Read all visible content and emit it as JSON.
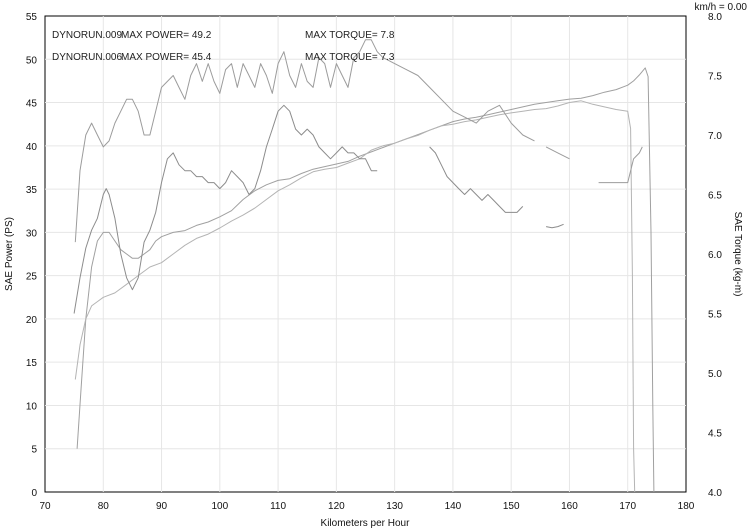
{
  "chart_data": {
    "type": "line",
    "xlabel": "Kilometers per Hour",
    "ylabel_left": "SAE Power  (PS)",
    "ylabel_right": "SAE Torque  (kg-m)",
    "readout": "km/h = 0.00",
    "xlim": [
      70,
      180
    ],
    "ylim_left": [
      0,
      55
    ],
    "ylim_right": [
      4.0,
      8.0
    ],
    "x_ticks": [
      70,
      80,
      90,
      100,
      110,
      120,
      130,
      140,
      150,
      160,
      170,
      180
    ],
    "y_left_ticks": [
      0,
      5,
      10,
      15,
      20,
      25,
      30,
      35,
      40,
      45,
      50,
      55
    ],
    "y_right_ticks": [
      "4.0",
      "4.5",
      "5.0",
      "5.5",
      "6.0",
      "6.5",
      "7.0",
      "7.5",
      "8.0"
    ],
    "grid": true,
    "legend": [
      {
        "run": "DYNORUN.009",
        "power": "MAX POWER= 49.2",
        "torque": "MAX TORQUE= 7.8",
        "color": "#8a8a8a"
      },
      {
        "run": "DYNORUN.006",
        "power": "MAX POWER= 45.4",
        "torque": "MAX TORQUE= 7.3",
        "color": "#222222"
      }
    ],
    "series": [
      {
        "name": "DYNORUN.009",
        "kind": "power",
        "axis": "left",
        "color": "#a0a0a0",
        "segments": [
          [
            [
              75.5,
              5
            ],
            [
              76.2,
              12
            ],
            [
              77,
              20
            ],
            [
              78,
              26
            ],
            [
              79,
              29
            ],
            [
              80,
              30
            ],
            [
              81,
              30
            ],
            [
              82,
              29
            ],
            [
              83,
              28
            ],
            [
              84,
              27.5
            ],
            [
              85,
              27
            ],
            [
              86,
              27
            ],
            [
              87,
              27.5
            ],
            [
              88,
              28
            ],
            [
              89,
              29
            ],
            [
              90,
              29.5
            ],
            [
              92,
              30
            ],
            [
              94,
              30.2
            ],
            [
              96,
              30.8
            ],
            [
              98,
              31.2
            ],
            [
              100,
              31.8
            ],
            [
              102,
              32.5
            ],
            [
              104,
              33.8
            ],
            [
              106,
              34.8
            ],
            [
              108,
              35.5
            ],
            [
              110,
              36
            ],
            [
              112,
              36.2
            ],
            [
              114,
              36.8
            ],
            [
              116,
              37.3
            ],
            [
              118,
              37.6
            ],
            [
              120,
              37.9
            ],
            [
              122,
              38.2
            ],
            [
              124,
              38.8
            ],
            [
              126,
              39.3
            ],
            [
              128,
              39.8
            ],
            [
              130,
              40.3
            ],
            [
              132,
              40.8
            ],
            [
              134,
              41.3
            ],
            [
              136,
              41.8
            ],
            [
              138,
              42.3
            ],
            [
              140,
              42.8
            ],
            [
              142,
              43.1
            ],
            [
              144,
              43.3
            ],
            [
              146,
              43.6
            ],
            [
              148,
              43.9
            ],
            [
              150,
              44.2
            ],
            [
              152,
              44.5
            ],
            [
              154,
              44.8
            ],
            [
              156,
              45
            ],
            [
              158,
              45.2
            ],
            [
              160,
              45.4
            ],
            [
              162,
              45.5
            ],
            [
              164,
              45.8
            ],
            [
              166,
              46.2
            ],
            [
              168,
              46.5
            ],
            [
              170,
              47
            ],
            [
              171,
              47.5
            ],
            [
              172,
              48.2
            ],
            [
              173,
              49
            ],
            [
              173.5,
              48
            ],
            [
              174,
              30
            ],
            [
              174.3,
              10
            ],
            [
              174.5,
              0
            ]
          ]
        ]
      },
      {
        "name": "DYNORUN.006",
        "kind": "power",
        "axis": "left",
        "color": "#b4b4b4",
        "segments": [
          [
            [
              75.2,
              13
            ],
            [
              76,
              17
            ],
            [
              77,
              20
            ],
            [
              78,
              21.5
            ],
            [
              79,
              22
            ],
            [
              80,
              22.5
            ],
            [
              82,
              23
            ],
            [
              84,
              24
            ],
            [
              86,
              25
            ],
            [
              88,
              26
            ],
            [
              90,
              26.5
            ],
            [
              92,
              27.5
            ],
            [
              94,
              28.5
            ],
            [
              96,
              29.3
            ],
            [
              98,
              29.8
            ],
            [
              100,
              30.5
            ],
            [
              102,
              31.3
            ],
            [
              104,
              32
            ],
            [
              106,
              32.8
            ],
            [
              108,
              33.8
            ],
            [
              110,
              34.8
            ],
            [
              112,
              35.5
            ],
            [
              114,
              36.3
            ],
            [
              116,
              37
            ],
            [
              118,
              37.3
            ],
            [
              120,
              37.5
            ],
            [
              122,
              38
            ],
            [
              124,
              38.5
            ],
            [
              126,
              39.5
            ],
            [
              128,
              40
            ],
            [
              130,
              40.3
            ],
            [
              132,
              40.8
            ],
            [
              134,
              41.2
            ],
            [
              136,
              41.8
            ],
            [
              138,
              42.3
            ],
            [
              140,
              42.5
            ],
            [
              142,
              42.8
            ],
            [
              144,
              43
            ],
            [
              146,
              43.3
            ],
            [
              148,
              43.6
            ],
            [
              150,
              43.8
            ],
            [
              152,
              44
            ],
            [
              154,
              44.2
            ],
            [
              156,
              44.3
            ],
            [
              158,
              44.6
            ],
            [
              160,
              45
            ],
            [
              162,
              45.2
            ],
            [
              164,
              44.8
            ],
            [
              166,
              44.5
            ],
            [
              168,
              44.2
            ],
            [
              170,
              44
            ],
            [
              170.5,
              42
            ],
            [
              170.8,
              25
            ],
            [
              171,
              5
            ],
            [
              171.2,
              0
            ]
          ]
        ]
      },
      {
        "name": "DYNORUN.009",
        "kind": "torque",
        "axis": "right",
        "color": "#9c9c9c",
        "segments": [
          [
            [
              75.2,
              6.1
            ],
            [
              76,
              6.7
            ],
            [
              77,
              7.0
            ],
            [
              78,
              7.1
            ],
            [
              79,
              7.0
            ],
            [
              80,
              6.9
            ],
            [
              81,
              6.95
            ],
            [
              82,
              7.1
            ],
            [
              83,
              7.2
            ],
            [
              84,
              7.3
            ],
            [
              85,
              7.3
            ],
            [
              86,
              7.2
            ],
            [
              87,
              7.0
            ],
            [
              88,
              7.0
            ],
            [
              89,
              7.2
            ],
            [
              90,
              7.4
            ],
            [
              91,
              7.45
            ],
            [
              92,
              7.5
            ],
            [
              93,
              7.4
            ],
            [
              94,
              7.3
            ],
            [
              95,
              7.5
            ],
            [
              96,
              7.6
            ],
            [
              97,
              7.45
            ],
            [
              98,
              7.6
            ],
            [
              99,
              7.45
            ],
            [
              100,
              7.35
            ],
            [
              101,
              7.55
            ],
            [
              102,
              7.6
            ],
            [
              103,
              7.4
            ],
            [
              104,
              7.6
            ],
            [
              105,
              7.5
            ],
            [
              106,
              7.4
            ],
            [
              107,
              7.6
            ],
            [
              108,
              7.5
            ],
            [
              109,
              7.35
            ],
            [
              110,
              7.6
            ],
            [
              111,
              7.7
            ],
            [
              112,
              7.5
            ],
            [
              113,
              7.4
            ],
            [
              114,
              7.6
            ],
            [
              115,
              7.45
            ],
            [
              116,
              7.4
            ],
            [
              117,
              7.65
            ],
            [
              118,
              7.6
            ],
            [
              119,
              7.4
            ],
            [
              120,
              7.6
            ],
            [
              121,
              7.5
            ],
            [
              122,
              7.4
            ],
            [
              123,
              7.65
            ],
            [
              124,
              7.7
            ],
            [
              125,
              7.8
            ],
            [
              126,
              7.8
            ],
            [
              127,
              7.7
            ],
            [
              128,
              7.65
            ],
            [
              130,
              7.6
            ],
            [
              132,
              7.55
            ],
            [
              134,
              7.5
            ],
            [
              136,
              7.4
            ],
            [
              138,
              7.3
            ],
            [
              140,
              7.2
            ],
            [
              142,
              7.15
            ],
            [
              144,
              7.1
            ],
            [
              146,
              7.2
            ],
            [
              148,
              7.25
            ],
            [
              150,
              7.1
            ],
            [
              152,
              7.0
            ],
            [
              154,
              6.95
            ]
          ],
          [
            [
              156,
              6.9
            ],
            [
              158,
              6.85
            ],
            [
              160,
              6.8
            ]
          ],
          [
            [
              165,
              6.6
            ],
            [
              167,
              6.6
            ],
            [
              169,
              6.6
            ],
            [
              170,
              6.6
            ],
            [
              171,
              6.8
            ],
            [
              172,
              6.85
            ],
            [
              172.5,
              6.9
            ]
          ]
        ]
      },
      {
        "name": "DYNORUN.006",
        "kind": "torque",
        "axis": "right",
        "color": "#8c8c8c",
        "segments": [
          [
            [
              75,
              5.5
            ],
            [
              76,
              5.8
            ],
            [
              77,
              6.05
            ],
            [
              78,
              6.2
            ],
            [
              79,
              6.3
            ],
            [
              80,
              6.5
            ],
            [
              80.5,
              6.55
            ],
            [
              81,
              6.5
            ],
            [
              82,
              6.3
            ],
            [
              83,
              6.0
            ],
            [
              84,
              5.8
            ],
            [
              85,
              5.7
            ],
            [
              86,
              5.8
            ],
            [
              87,
              6.1
            ],
            [
              88,
              6.2
            ],
            [
              89,
              6.35
            ],
            [
              90,
              6.6
            ],
            [
              91,
              6.8
            ],
            [
              92,
              6.85
            ],
            [
              93,
              6.75
            ],
            [
              94,
              6.7
            ],
            [
              95,
              6.7
            ],
            [
              96,
              6.65
            ],
            [
              97,
              6.65
            ],
            [
              98,
              6.6
            ],
            [
              99,
              6.6
            ],
            [
              100,
              6.55
            ],
            [
              101,
              6.6
            ],
            [
              102,
              6.7
            ],
            [
              103,
              6.65
            ],
            [
              104,
              6.6
            ],
            [
              105,
              6.5
            ],
            [
              106,
              6.55
            ],
            [
              107,
              6.7
            ],
            [
              108,
              6.9
            ],
            [
              109,
              7.05
            ],
            [
              110,
              7.2
            ],
            [
              111,
              7.25
            ],
            [
              112,
              7.2
            ],
            [
              113,
              7.05
            ],
            [
              114,
              7.0
            ],
            [
              115,
              7.05
            ],
            [
              116,
              7.0
            ],
            [
              117,
              6.9
            ],
            [
              118,
              6.85
            ],
            [
              119,
              6.8
            ],
            [
              120,
              6.85
            ],
            [
              121,
              6.9
            ],
            [
              122,
              6.85
            ],
            [
              123,
              6.85
            ],
            [
              124,
              6.8
            ],
            [
              125,
              6.8
            ],
            [
              126,
              6.7
            ],
            [
              127,
              6.7
            ]
          ],
          [
            [
              136,
              6.9
            ],
            [
              137,
              6.85
            ],
            [
              138,
              6.75
            ],
            [
              139,
              6.65
            ],
            [
              140,
              6.6
            ],
            [
              141,
              6.55
            ],
            [
              142,
              6.5
            ],
            [
              143,
              6.55
            ],
            [
              144,
              6.5
            ],
            [
              145,
              6.45
            ],
            [
              146,
              6.5
            ],
            [
              147,
              6.45
            ],
            [
              148,
              6.4
            ],
            [
              149,
              6.35
            ],
            [
              150,
              6.35
            ],
            [
              151,
              6.35
            ],
            [
              152,
              6.4
            ]
          ],
          [
            [
              156,
              6.23
            ],
            [
              157,
              6.22
            ],
            [
              158,
              6.23
            ],
            [
              159,
              6.25
            ]
          ]
        ]
      }
    ]
  }
}
